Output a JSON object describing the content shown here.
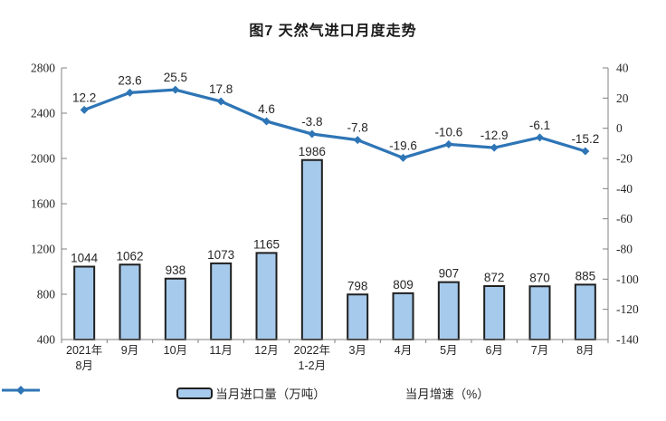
{
  "title": "图7 天然气进口月度走势",
  "chart_data": {
    "type": "bar+line",
    "title": "图7 天然气进口月度走势",
    "categories": [
      [
        "2021年",
        "8月"
      ],
      [
        "9月"
      ],
      [
        "10月"
      ],
      [
        "11月"
      ],
      [
        "12月"
      ],
      [
        "2022年",
        "1-2月"
      ],
      [
        "3月"
      ],
      [
        "4月"
      ],
      [
        "5月"
      ],
      [
        "6月"
      ],
      [
        "7月"
      ],
      [
        "8月"
      ]
    ],
    "series": [
      {
        "name": "当月进口量（万吨）",
        "type": "bar",
        "axis": "left",
        "values": [
          1044,
          1062,
          938,
          1073,
          1165,
          1986,
          798,
          809,
          907,
          872,
          870,
          885
        ]
      },
      {
        "name": "当月增速（%）",
        "type": "line",
        "axis": "right",
        "values": [
          12.2,
          23.6,
          25.5,
          17.8,
          4.6,
          -3.8,
          -7.8,
          -19.6,
          -10.6,
          -12.9,
          -6.1,
          -15.2
        ]
      }
    ],
    "left_axis": {
      "min": 400,
      "max": 2800,
      "step": 400,
      "tick_labels": [
        "2800",
        "2400",
        "2000",
        "1600",
        "1200",
        "800",
        "400"
      ]
    },
    "right_axis": {
      "min": -140,
      "max": 40,
      "step": 20,
      "tick_labels": [
        "40",
        "20",
        "0",
        "-20",
        "-40",
        "-60",
        "-80",
        "-100",
        "-120",
        "-140"
      ]
    },
    "grid": false,
    "legend_position": "bottom",
    "colors": {
      "bar_fill": "#A6CAEC",
      "bar_border": "#1F1F1F",
      "line": "#2E75B6",
      "axis": "#808080",
      "text": "#262626"
    }
  }
}
